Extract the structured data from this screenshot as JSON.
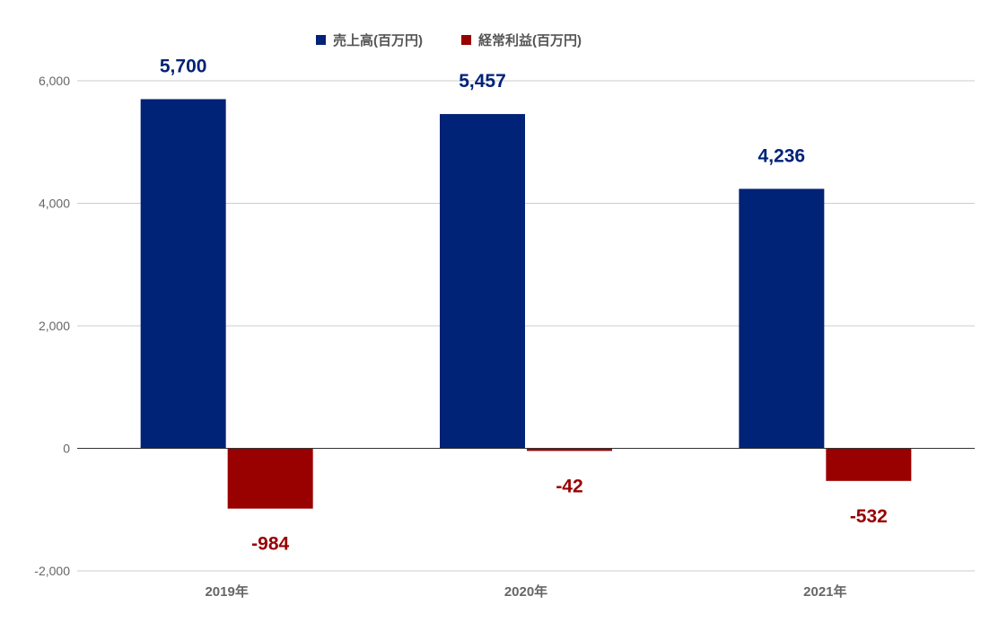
{
  "chart_data": {
    "type": "bar",
    "categories": [
      "2019年",
      "2020年",
      "2021年"
    ],
    "series": [
      {
        "name": "売上高(百万円)",
        "values": [
          5700,
          5457,
          4236
        ],
        "labels": [
          "5,700",
          "5,457",
          "4,236"
        ],
        "color": "#002277"
      },
      {
        "name": "経常利益(百万円)",
        "values": [
          -984,
          -42,
          -532
        ],
        "labels": [
          "-984",
          "-42",
          "-532"
        ],
        "color": "#990000"
      }
    ],
    "yticks": [
      "6,000",
      "4,000",
      "2,000",
      "0",
      "-2,000"
    ],
    "ytick_values": [
      6000,
      4000,
      2000,
      0,
      -2000
    ],
    "ylim": [
      -2000,
      6000
    ],
    "grid": true,
    "legend_position": "top"
  }
}
